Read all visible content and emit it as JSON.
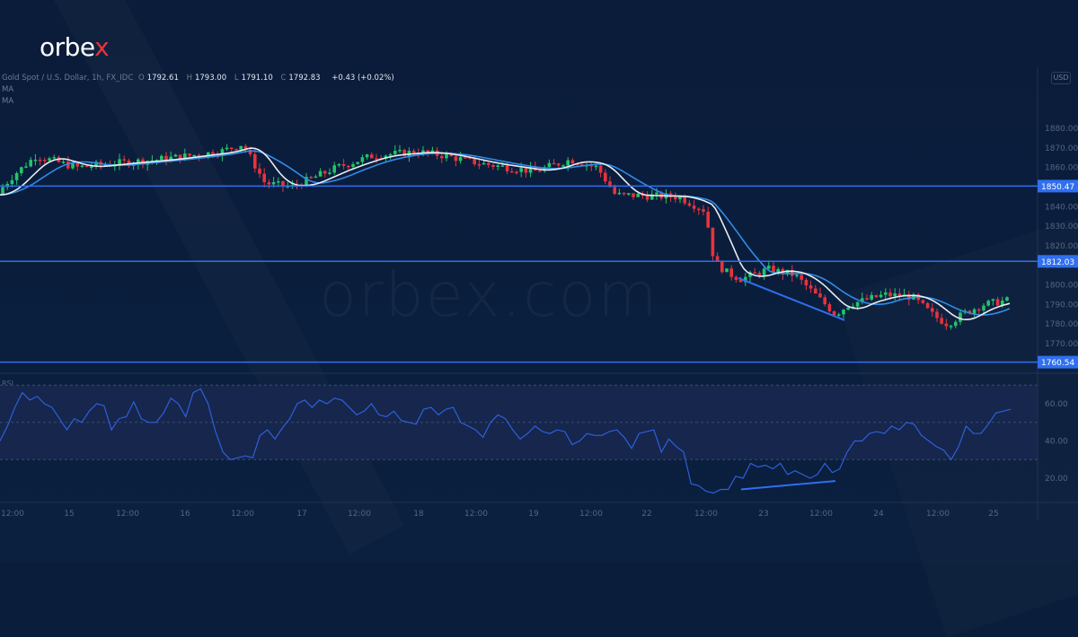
{
  "brand": {
    "logo_main": "orbe",
    "logo_accent": "x",
    "watermark": "orbex.com"
  },
  "legend": {
    "symbol": "Gold Spot / U.S. Dollar, 1h, FX_IDC",
    "open_label": "O",
    "open": "1792.61",
    "high_label": "H",
    "high": "1793.00",
    "low_label": "L",
    "low": "1791.10",
    "close_label": "C",
    "close": "1792.83",
    "change": "+0.43 (+0.02%)",
    "indicators": [
      "MA",
      "MA"
    ]
  },
  "currency_badge": "USD",
  "rsi_label": "RSI",
  "colors": {
    "background": "#0b1c3a",
    "bull": "#22c46b",
    "bear": "#e8323c",
    "ma_fast": "#e8ecf2",
    "ma_slow": "#2f8ce8",
    "level_line": "#2f6ff0",
    "rsi_line": "#2f5fd8",
    "rsi_band": "#16264d"
  },
  "chart_data": [
    {
      "type": "candlestick",
      "title": "Gold Spot / U.S. Dollar, 1h, FX_IDC",
      "ylabel": "USD",
      "ylim": [
        1765,
        1890
      ],
      "y_ticks": [
        "1880.00",
        "1870.00",
        "1860.00",
        "1850.00",
        "1840.00",
        "1830.00",
        "1820.00",
        "1810.00",
        "1800.00",
        "1790.00",
        "1780.00",
        "1770.00"
      ],
      "x_ticks": [
        "12:00",
        "15",
        "12:00",
        "16",
        "12:00",
        "17",
        "12:00",
        "18",
        "12:00",
        "19",
        "12:00",
        "22",
        "12:00",
        "23",
        "12:00",
        "24",
        "12:00",
        "25"
      ],
      "horizontal_levels": [
        {
          "value": 1850.47,
          "label": "1850.47"
        },
        {
          "value": 1812.03,
          "label": "1812.03"
        },
        {
          "value": 1760.54,
          "label": "1760.54"
        }
      ],
      "last_ohlc": {
        "open": 1792.61,
        "high": 1793.0,
        "low": 1791.1,
        "close": 1792.83,
        "change": 0.43,
        "change_pct": 0.02
      },
      "series": [
        {
          "name": "MA (fast)",
          "color": "white"
        },
        {
          "name": "MA (slow)",
          "color": "blue"
        }
      ],
      "annotations": [
        "descending trendline from ~1803 (Jul 22 evening) to ~1782 (Jul 23 midday)"
      ],
      "grid": false
    },
    {
      "type": "line",
      "title": "RSI",
      "ylim": [
        10,
        72
      ],
      "y_ticks": [
        "60.00",
        "40.00",
        "20.00"
      ],
      "bands": [
        30,
        70
      ],
      "annotations": [
        "ascending trendline from ~15 (Jul 22) to ~19 (Jul 23) — bullish divergence"
      ],
      "values": [
        40,
        48,
        58,
        66,
        62,
        64,
        60,
        58,
        52,
        46,
        52,
        50,
        56,
        60,
        59,
        46,
        52,
        53,
        61,
        52,
        50,
        50,
        55,
        63,
        60,
        53,
        66,
        68,
        60,
        45,
        34,
        30,
        31,
        32,
        31,
        43,
        46,
        41,
        47,
        52,
        60,
        62,
        58,
        62,
        60,
        63,
        62,
        58,
        54,
        56,
        60,
        54,
        53,
        56,
        51,
        50,
        49,
        57,
        58,
        54,
        57,
        58,
        50,
        48,
        46,
        42,
        50,
        54,
        52,
        46,
        41,
        44,
        48,
        45,
        44,
        46,
        45,
        38,
        40,
        44,
        43,
        43,
        45,
        46,
        42,
        36,
        44,
        45,
        46,
        34,
        41,
        37,
        34,
        17,
        16,
        13,
        12,
        14,
        14,
        21,
        20,
        28,
        26,
        27,
        25,
        28,
        22,
        24,
        22,
        20,
        22,
        28,
        23,
        25,
        34,
        40,
        40,
        44,
        45,
        44,
        48,
        46,
        50,
        49,
        43,
        40,
        37,
        35,
        30,
        37,
        48,
        44,
        44,
        49,
        55,
        56,
        57
      ]
    }
  ]
}
